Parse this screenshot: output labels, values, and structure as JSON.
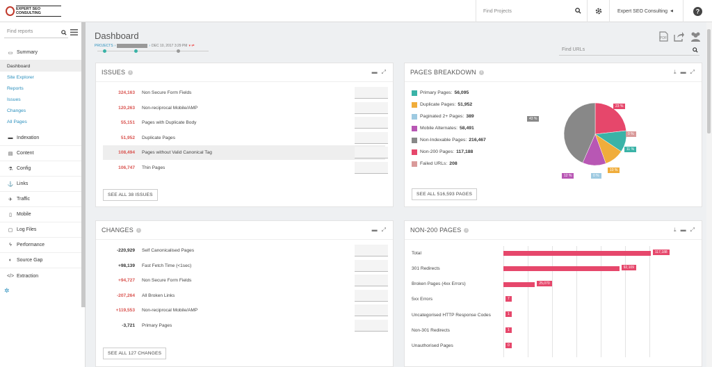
{
  "topbar": {
    "logo_text": "EXPERT SEO CONSULTING",
    "find_projects": "Find Projects",
    "account": "Expert SEO Consulting"
  },
  "sidebar": {
    "search_placeholder": "Find reports",
    "sections": [
      {
        "label": "Summary",
        "icon": "monitor-icon"
      },
      {
        "label": "Indexation",
        "icon": "indexation-icon"
      },
      {
        "label": "Content",
        "icon": "content-icon"
      },
      {
        "label": "Config",
        "icon": "flask-icon"
      },
      {
        "label": "Links",
        "icon": "anchor-icon"
      },
      {
        "label": "Traffic",
        "icon": "plane-icon"
      },
      {
        "label": "Mobile",
        "icon": "mobile-icon"
      },
      {
        "label": "Log Files",
        "icon": "file-icon"
      },
      {
        "label": "Performance",
        "icon": "bolt-icon"
      },
      {
        "label": "Source Gap",
        "icon": "half-circle-icon"
      },
      {
        "label": "Extraction",
        "icon": "code-icon"
      }
    ],
    "summary_items": [
      "Dashboard",
      "Site Explorer",
      "Reports",
      "Issues",
      "Changes",
      "All Pages"
    ]
  },
  "header": {
    "title": "Dashboard",
    "breadcrumb_projects": "PROJECTS",
    "breadcrumb_date": "DEC 10, 2017 3:29 PM",
    "find_urls": "Find URLs"
  },
  "issues": {
    "title": "ISSUES",
    "button": "SEE ALL 38 ISSUES",
    "rows": [
      {
        "value": "324,163",
        "label": "Non Secure Form Fields"
      },
      {
        "value": "120,263",
        "label": "Non-reciprocal Mobile/AMP"
      },
      {
        "value": "55,151",
        "label": "Pages with Duplicate Body"
      },
      {
        "value": "51,952",
        "label": "Duplicate Pages"
      },
      {
        "value": "108,494",
        "label": "Pages without Valid Canonical Tag"
      },
      {
        "value": "106,747",
        "label": "Thin Pages"
      }
    ]
  },
  "changes": {
    "title": "CHANGES",
    "button": "SEE ALL 127 CHANGES",
    "rows": [
      {
        "value": "-220,929",
        "label": "Self Canonicalised Pages",
        "color": "dark"
      },
      {
        "value": "+98,139",
        "label": "Fast Fetch Time (<1sec)",
        "color": "dark"
      },
      {
        "value": "+94,727",
        "label": "Non Secure Form Fields",
        "color": "red"
      },
      {
        "value": "-207,264",
        "label": "All Broken Links",
        "color": "red"
      },
      {
        "value": "+119,553",
        "label": "Non-reciprocal Mobile/AMP",
        "color": "red"
      },
      {
        "value": "-3,721",
        "label": "Primary Pages",
        "color": "dark"
      }
    ]
  },
  "breakdown": {
    "title": "PAGES BREAKDOWN",
    "button": "SEE ALL 516,593 PAGES",
    "items": [
      {
        "label": "Primary Pages:",
        "value": "56,095",
        "color": "#3ab3a7"
      },
      {
        "label": "Duplicate Pages:",
        "value": "51,952",
        "color": "#f0ad3b"
      },
      {
        "label": "Paginated 2+ Pages:",
        "value": "389",
        "color": "#9ecae1"
      },
      {
        "label": "Mobile Alternates:",
        "value": "58,491",
        "color": "#b857b4"
      },
      {
        "label": "Non-Indexable Pages:",
        "value": "216,467",
        "color": "#888888"
      },
      {
        "label": "Non-200 Pages:",
        "value": "117,188",
        "color": "#e6476b"
      },
      {
        "label": "Failed URLs:",
        "value": "208",
        "color": "#d99a9a"
      }
    ]
  },
  "chart_data": [
    {
      "type": "pie",
      "title": "PAGES BREAKDOWN",
      "slices": [
        {
          "label": "Primary Pages",
          "value": 11,
          "color": "#3ab3a7"
        },
        {
          "label": "Duplicate Pages",
          "value": 10,
          "color": "#f0ad3b"
        },
        {
          "label": "Paginated 2+ Pages",
          "value": 0,
          "color": "#9ecae1"
        },
        {
          "label": "Mobile Alternates",
          "value": 12,
          "color": "#b857b4"
        },
        {
          "label": "Non-Indexable Pages",
          "value": 43,
          "color": "#888888"
        },
        {
          "label": "Non-200 Pages",
          "value": 23,
          "color": "#e6476b"
        },
        {
          "label": "Failed URLs",
          "value": 0,
          "color": "#d99a9a"
        }
      ]
    },
    {
      "type": "bar",
      "title": "NON-200 PAGES",
      "categories": [
        "Total",
        "301 Redirects",
        "Broken Pages (4xx Errors)",
        "5xx Errors",
        "Uncategorised HTTP Response Codes",
        "Non-301 Redirects",
        "Unauthorised Pages"
      ],
      "values": [
        117188,
        92109,
        25070,
        7,
        1,
        1,
        0
      ],
      "value_labels": [
        "117,188",
        "92,109",
        "25,070",
        "7",
        "1",
        "1",
        "0"
      ]
    }
  ],
  "non200": {
    "title": "NON-200 PAGES"
  }
}
